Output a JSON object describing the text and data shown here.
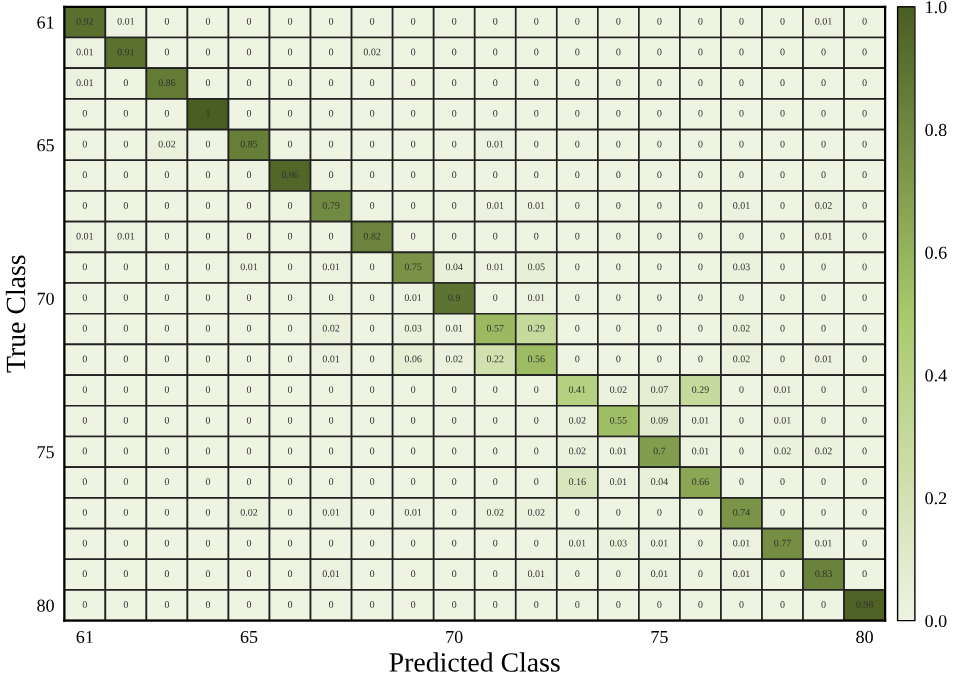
{
  "chart_data": {
    "type": "heatmap",
    "xlabel": "Predicted Class",
    "ylabel": "True Class",
    "categories": [
      "61",
      null,
      null,
      null,
      "65",
      null,
      null,
      null,
      null,
      "70",
      null,
      null,
      null,
      null,
      "75",
      null,
      null,
      null,
      null,
      "80"
    ],
    "y_categories": [
      "61",
      null,
      null,
      null,
      "65",
      null,
      null,
      null,
      null,
      "70",
      null,
      null,
      null,
      null,
      "75",
      null,
      null,
      null,
      null,
      "80"
    ],
    "cells": [
      [
        0.92,
        0.01,
        0,
        0,
        0,
        0,
        0,
        0,
        0,
        0,
        0,
        0,
        0,
        0,
        0,
        0,
        0,
        0,
        0.01,
        0
      ],
      [
        0.01,
        0.91,
        0,
        0,
        0,
        0,
        0,
        0.02,
        0,
        0,
        0,
        0,
        0,
        0,
        0,
        0,
        0,
        0,
        0,
        0
      ],
      [
        0.01,
        0,
        0.86,
        0,
        0,
        0,
        0,
        0,
        0,
        0,
        0,
        0,
        0,
        0,
        0,
        0,
        0,
        0,
        0,
        0
      ],
      [
        0,
        0,
        0,
        1,
        0,
        0,
        0,
        0,
        0,
        0,
        0,
        0,
        0,
        0,
        0,
        0,
        0,
        0,
        0,
        0
      ],
      [
        0,
        0,
        0.02,
        0,
        0.85,
        0,
        0,
        0,
        0,
        0,
        0.01,
        0,
        0,
        0,
        0,
        0,
        0,
        0,
        0,
        0
      ],
      [
        0,
        0,
        0,
        0,
        0,
        0.96,
        0,
        0,
        0,
        0,
        0,
        0,
        0,
        0,
        0,
        0,
        0,
        0,
        0,
        0
      ],
      [
        0,
        0,
        0,
        0,
        0,
        0,
        0.79,
        0,
        0,
        0,
        0.01,
        0.01,
        0,
        0,
        0,
        0,
        0.01,
        0,
        0.02,
        0
      ],
      [
        0.01,
        0.01,
        0,
        0,
        0,
        0,
        0,
        0.82,
        0,
        0,
        0,
        0,
        0,
        0,
        0,
        0,
        0,
        0,
        0.01,
        0
      ],
      [
        0,
        0,
        0,
        0,
        0.01,
        0,
        0.01,
        0,
        0.75,
        0.04,
        0.01,
        0.05,
        0,
        0,
        0,
        0,
        0.03,
        0,
        0,
        0
      ],
      [
        0,
        0,
        0,
        0,
        0,
        0,
        0,
        0,
        0.01,
        0.9,
        0,
        0.01,
        0,
        0,
        0,
        0,
        0,
        0,
        0,
        0
      ],
      [
        0,
        0,
        0,
        0,
        0,
        0,
        0.02,
        0,
        0.03,
        0.01,
        0.57,
        0.29,
        0,
        0,
        0,
        0,
        0.02,
        0,
        0,
        0
      ],
      [
        0,
        0,
        0,
        0,
        0,
        0,
        0.01,
        0,
        0.06,
        0.02,
        0.22,
        0.56,
        0,
        0,
        0,
        0,
        0.02,
        0,
        0.01,
        0
      ],
      [
        0,
        0,
        0,
        0,
        0,
        0,
        0,
        0,
        0,
        0,
        0,
        0,
        0.41,
        0.02,
        0.07,
        0.29,
        0,
        0.01,
        0,
        0
      ],
      [
        0,
        0,
        0,
        0,
        0,
        0,
        0,
        0,
        0,
        0,
        0,
        0,
        0.02,
        0.55,
        0.09,
        0.01,
        0,
        0.01,
        0,
        0
      ],
      [
        0,
        0,
        0,
        0,
        0,
        0,
        0,
        0,
        0,
        0,
        0,
        0,
        0.02,
        0.01,
        0.7,
        0.01,
        0,
        0.02,
        0.02,
        0
      ],
      [
        0,
        0,
        0,
        0,
        0,
        0,
        0,
        0,
        0,
        0,
        0,
        0,
        0.16,
        0.01,
        0.04,
        0.66,
        0,
        0,
        0,
        0
      ],
      [
        0,
        0,
        0,
        0,
        0.02,
        0,
        0.01,
        0,
        0.01,
        0,
        0.02,
        0.02,
        0,
        0,
        0,
        0,
        0.74,
        0,
        0,
        0
      ],
      [
        0,
        0,
        0,
        0,
        0,
        0,
        0,
        0,
        0,
        0,
        0,
        0,
        0.01,
        0.03,
        0.01,
        0,
        0.01,
        0.77,
        0.01,
        0
      ],
      [
        0,
        0,
        0,
        0,
        0,
        0,
        0.01,
        0,
        0,
        0,
        0,
        0.01,
        0,
        0,
        0.01,
        0,
        0.01,
        0,
        0.83,
        0
      ],
      [
        0,
        0,
        0,
        0,
        0,
        0,
        0,
        0,
        0,
        0,
        0,
        0,
        0,
        0,
        0,
        0,
        0,
        0,
        0,
        0.98
      ]
    ],
    "data_labels": true,
    "colors": [
      "#eef3e2",
      "#a9c86c",
      "#4a5e22"
    ],
    "clim": [
      0,
      1
    ],
    "cticks": [
      {
        "value": 0,
        "label": "0.0"
      },
      0.2,
      0.4,
      0.6,
      0.8,
      {
        "value": 1,
        "label": "1.0"
      }
    ]
  }
}
